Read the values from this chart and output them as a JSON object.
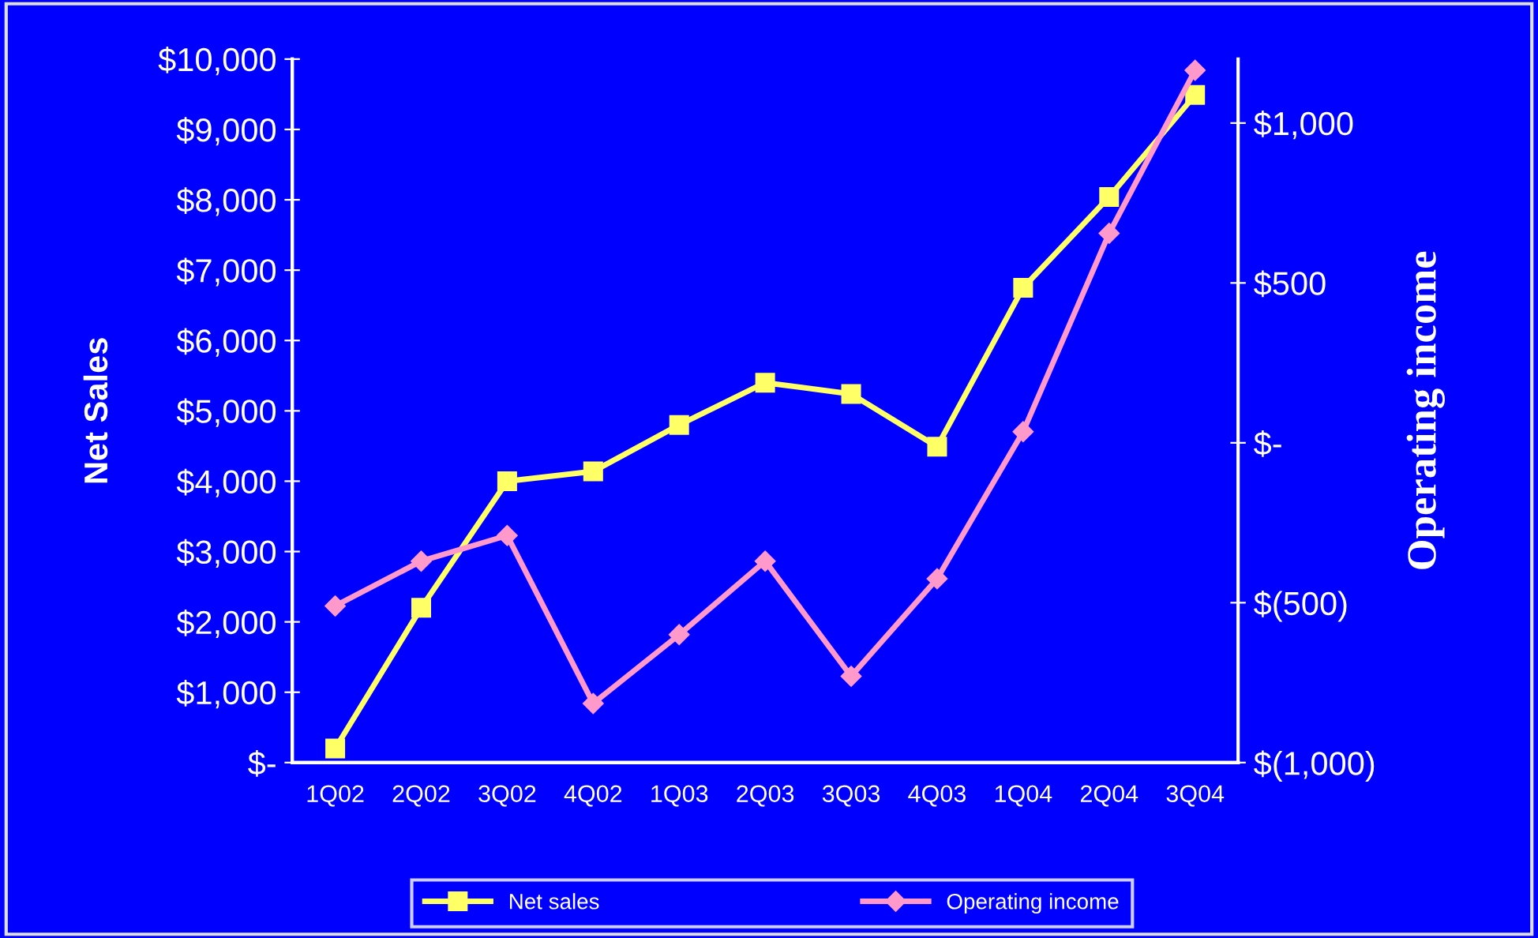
{
  "chart_data": {
    "type": "line",
    "ylabel": "Net Sales",
    "y2label": "Operating income",
    "categories": [
      "1Q02",
      "2Q02",
      "3Q02",
      "4Q02",
      "1Q03",
      "2Q03",
      "3Q03",
      "4Q03",
      "1Q04",
      "2Q04",
      "3Q04"
    ],
    "series": [
      {
        "name": "Net sales",
        "color": "#ffff66",
        "marker": "square",
        "values": [
          200,
          2200,
          4000,
          4140,
          4800,
          5400,
          5240,
          4490,
          6750,
          8040,
          9490
        ]
      },
      {
        "name": "Operating income",
        "color": "#ff99cc",
        "marker": "diamond",
        "axis": "y2",
        "values": [
          -510,
          -370,
          -290,
          -815,
          -600,
          -370,
          -730,
          -425,
          35,
          655,
          1165
        ]
      }
    ],
    "ylim": [
      0,
      10000
    ],
    "yticks": [
      {
        "value": 0,
        "label": "$-"
      },
      {
        "value": 1000,
        "label": "$1,000"
      },
      {
        "value": 2000,
        "label": "$2,000"
      },
      {
        "value": 3000,
        "label": "$3,000"
      },
      {
        "value": 4000,
        "label": "$4,000"
      },
      {
        "value": 5000,
        "label": "$5,000"
      },
      {
        "value": 6000,
        "label": "$6,000"
      },
      {
        "value": 7000,
        "label": "$7,000"
      },
      {
        "value": 8000,
        "label": "$8,000"
      },
      {
        "value": 9000,
        "label": "$9,000"
      },
      {
        "value": 10000,
        "label": "$10,000"
      }
    ],
    "y2lim": [
      -1000,
      1200
    ],
    "y2ticks": [
      {
        "value": -1000,
        "label": "$(1,000)"
      },
      {
        "value": -500,
        "label": "$(500)"
      },
      {
        "value": 0,
        "label": "$-"
      },
      {
        "value": 500,
        "label": "$500"
      },
      {
        "value": 1000,
        "label": "$1,000"
      }
    ],
    "grid": false,
    "legend": "bottom",
    "line_style": "solid"
  }
}
